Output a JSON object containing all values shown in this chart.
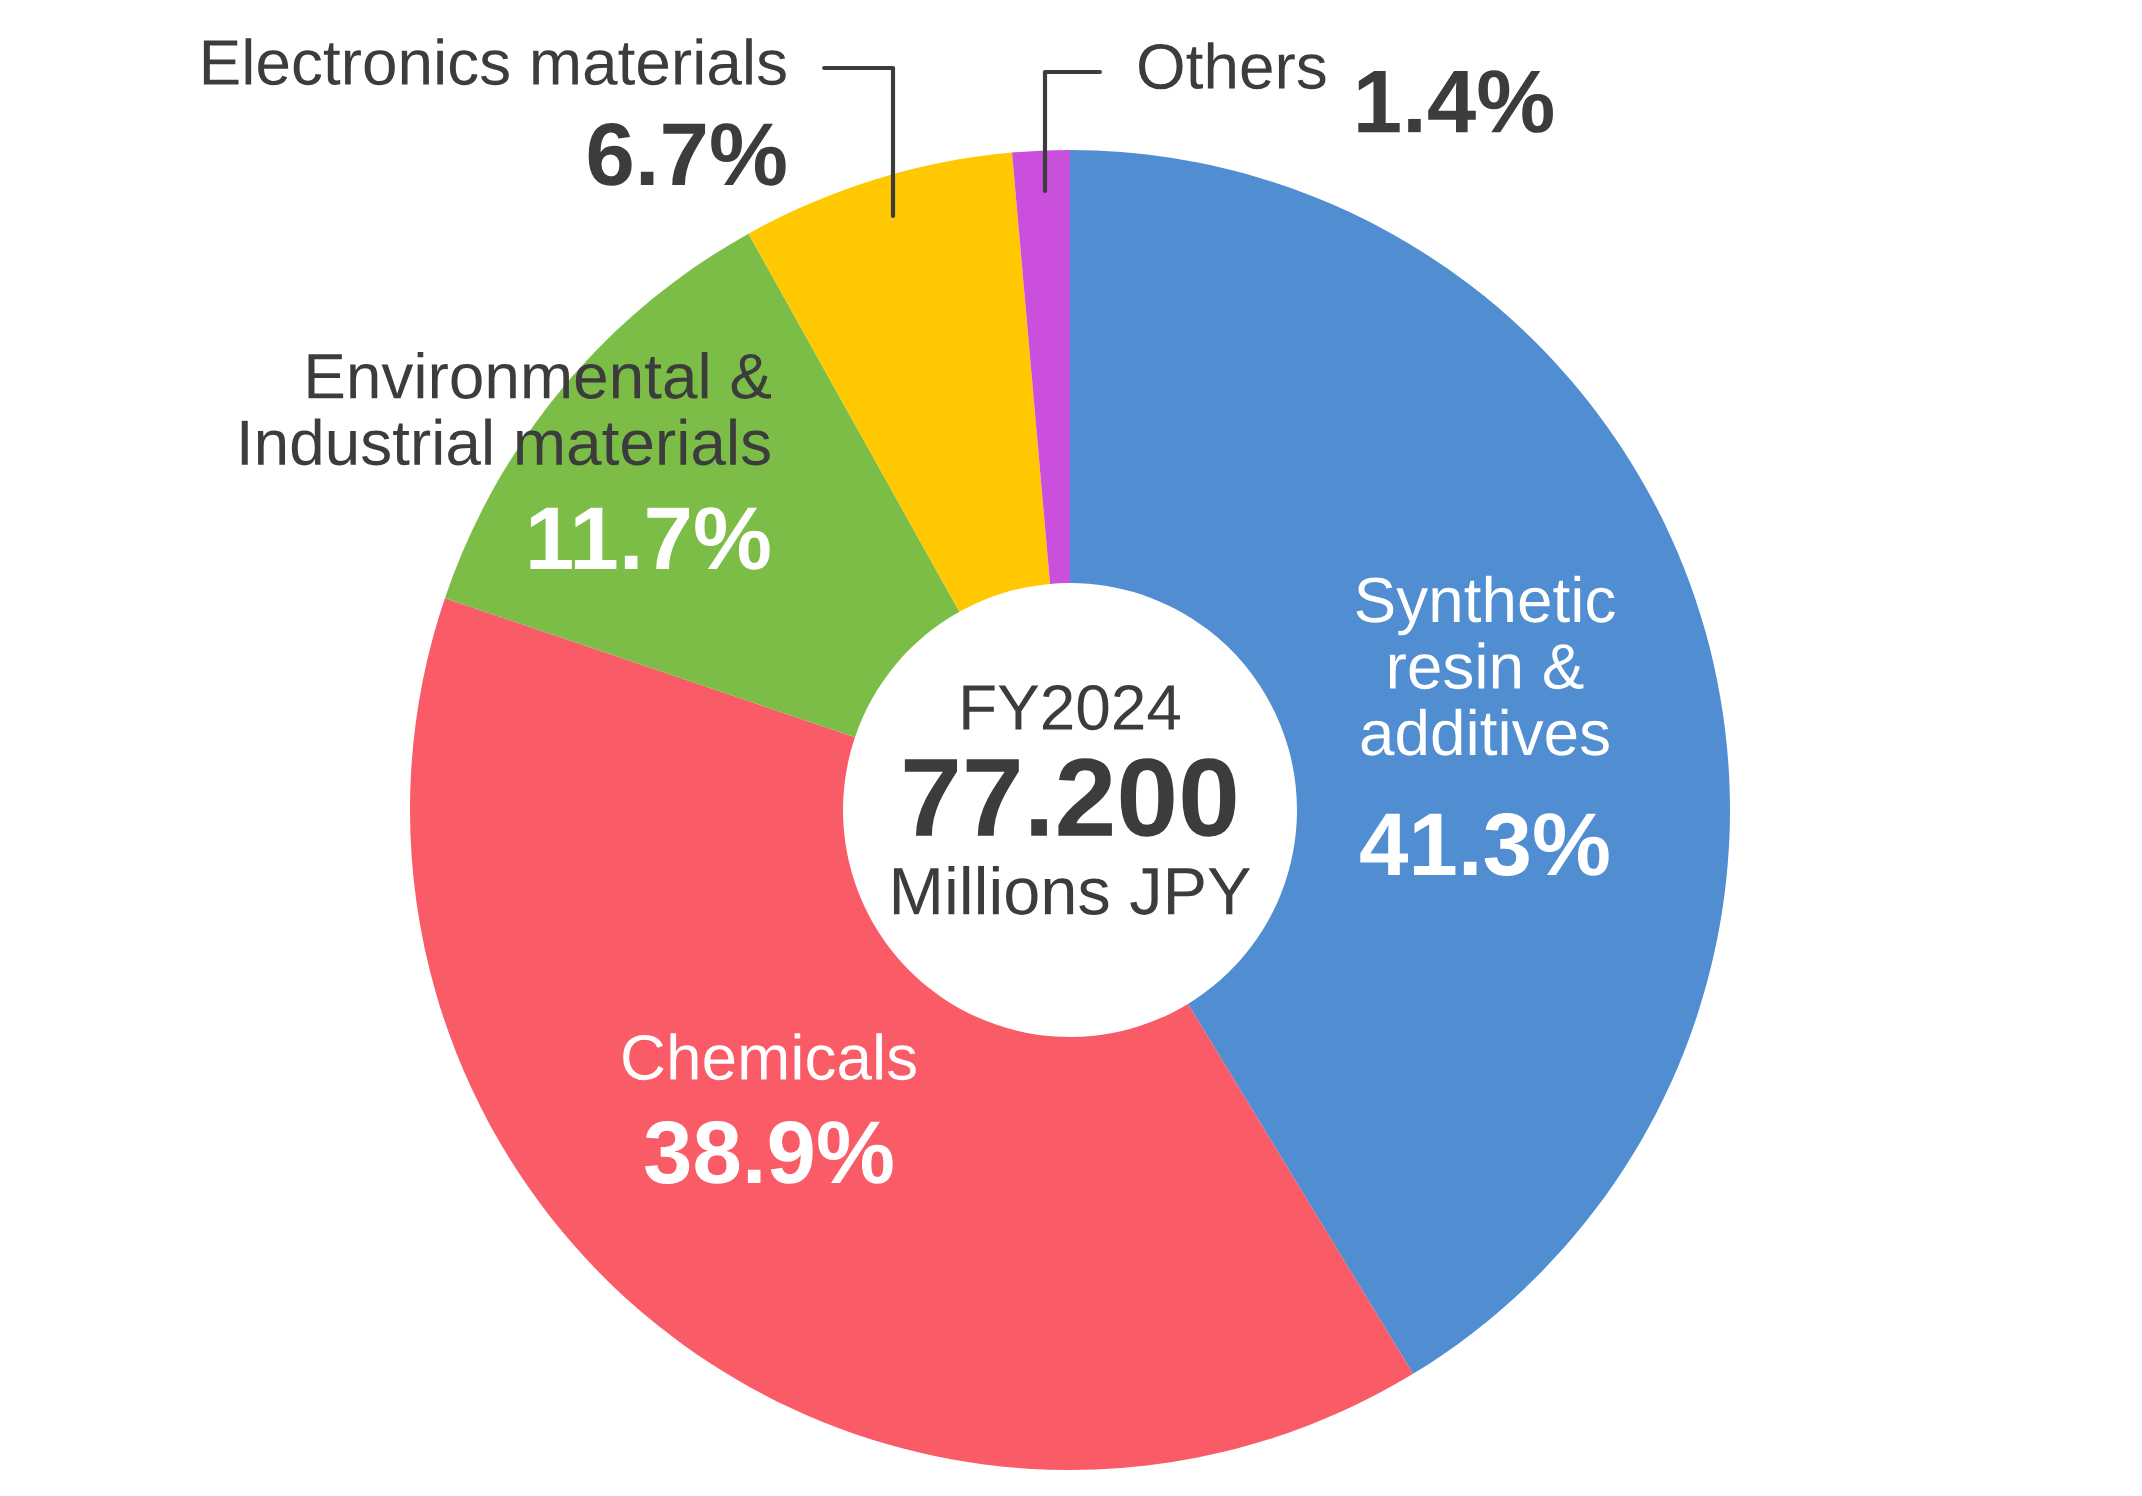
{
  "chart_data": {
    "type": "donut",
    "categories": [
      "Synthetic\nresin &\nadditives",
      "Chemicals",
      "Environmental &\nIndustrial materials",
      "Electronics materials",
      "Others"
    ],
    "values": [
      41.3,
      38.9,
      11.7,
      6.7,
      1.4
    ],
    "colors": [
      "#518dd1",
      "#f95b67",
      "#7bbd46",
      "#ffc800",
      "#c94fdc"
    ],
    "value_labels": [
      "41.3%",
      "38.9%",
      "11.7%",
      "6.7%",
      "1.4%"
    ],
    "annotations": [
      "FY2024",
      "77.200",
      "Millions JPY"
    ]
  }
}
